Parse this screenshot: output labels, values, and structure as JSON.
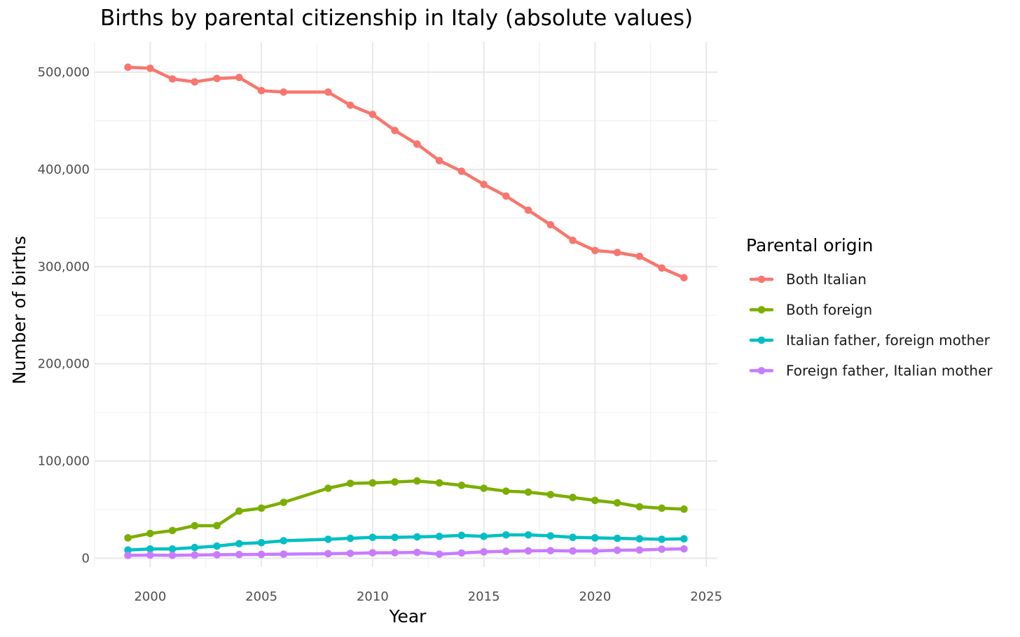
{
  "chart_data": {
    "type": "line",
    "title": "Births by parental citizenship in Italy (absolute values)",
    "xlabel": "Year",
    "ylabel": "Number of births",
    "xlim": [
      1997.5,
      2025.5
    ],
    "ylim": [
      -9000,
      531000
    ],
    "x_ticks": [
      2000,
      2005,
      2010,
      2015,
      2020,
      2025
    ],
    "x_tick_labels": [
      "2000",
      "2005",
      "2010",
      "2015",
      "2020",
      "2025"
    ],
    "y_ticks": [
      0,
      100000,
      200000,
      300000,
      400000,
      500000
    ],
    "y_tick_labels": [
      "0",
      "100,000",
      "200,000",
      "300,000",
      "400,000",
      "500,000"
    ],
    "grid": true,
    "legend_title": "Parental origin",
    "legend_position": "right",
    "series": [
      {
        "name": "Both Italian",
        "color": "#F8766D",
        "x": [
          1999,
          2000,
          2001,
          2002,
          2003,
          2004,
          2005,
          2006,
          2008,
          2009,
          2010,
          2011,
          2012,
          2013,
          2014,
          2015,
          2016,
          2017,
          2018,
          2019,
          2020,
          2021,
          2022,
          2023,
          2024
        ],
        "values": [
          505000,
          504000,
          493000,
          490000,
          493500,
          494500,
          481000,
          479500,
          479500,
          466000,
          456500,
          440000,
          426000,
          409000,
          398000,
          384500,
          372500,
          358000,
          343000,
          327000,
          316500,
          314500,
          310500,
          298500,
          288500
        ]
      },
      {
        "name": "Both foreign",
        "color": "#7CAE00",
        "x": [
          1999,
          2000,
          2001,
          2002,
          2003,
          2004,
          2005,
          2006,
          2008,
          2009,
          2010,
          2011,
          2012,
          2013,
          2014,
          2015,
          2016,
          2017,
          2018,
          2019,
          2020,
          2021,
          2022,
          2023,
          2024
        ],
        "values": [
          21000,
          25500,
          28500,
          33500,
          33500,
          48500,
          51500,
          57500,
          72000,
          77000,
          77500,
          78500,
          79500,
          77500,
          75000,
          72000,
          69000,
          68000,
          65500,
          62500,
          59500,
          57000,
          53000,
          51500,
          50500
        ]
      },
      {
        "name": "Italian father, foreign mother",
        "color": "#00BFC4",
        "x": [
          1999,
          2000,
          2001,
          2002,
          2003,
          2004,
          2005,
          2006,
          2008,
          2009,
          2010,
          2011,
          2012,
          2013,
          2014,
          2015,
          2016,
          2017,
          2018,
          2019,
          2020,
          2021,
          2022,
          2023,
          2024
        ],
        "values": [
          8500,
          9500,
          9500,
          11000,
          12500,
          15000,
          16000,
          18000,
          19500,
          20500,
          21500,
          21500,
          22000,
          22500,
          23500,
          22500,
          24000,
          24000,
          23000,
          21500,
          21000,
          20500,
          20000,
          19500,
          20000
        ]
      },
      {
        "name": "Foreign father, Italian mother",
        "color": "#C77CFF",
        "x": [
          1999,
          2000,
          2001,
          2002,
          2003,
          2004,
          2005,
          2006,
          2008,
          2009,
          2010,
          2011,
          2012,
          2013,
          2014,
          2015,
          2016,
          2017,
          2018,
          2019,
          2020,
          2021,
          2022,
          2023,
          2024
        ],
        "values": [
          3000,
          3200,
          3000,
          3300,
          3600,
          3800,
          4000,
          4200,
          4700,
          5000,
          5600,
          5700,
          6000,
          4200,
          5400,
          6600,
          7200,
          7600,
          7800,
          7500,
          7500,
          8200,
          8500,
          9300,
          9600
        ]
      }
    ]
  }
}
